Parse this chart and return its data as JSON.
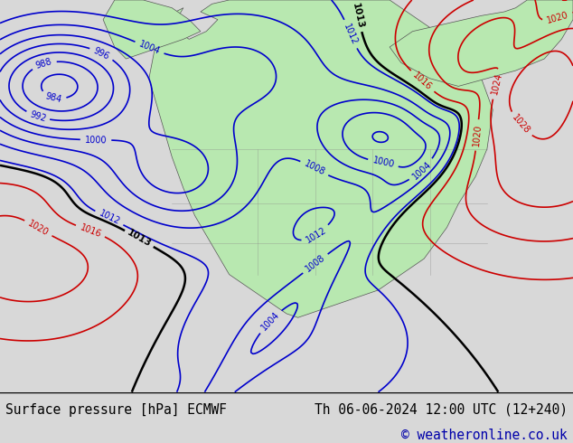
{
  "title_left": "Surface pressure [hPa] ECMWF",
  "title_right": "Th 06-06-2024 12:00 UTC (12+240)",
  "copyright": "© weatheronline.co.uk",
  "bg_color": "#d8d8d8",
  "land_color": "#b8e8b0",
  "ocean_color": "#d8d8d8",
  "contour_blue_color": "#0000cc",
  "contour_red_color": "#cc0000",
  "contour_black_color": "#000000",
  "footer_bg": "#ffffff",
  "font_family": "monospace",
  "title_fontsize": 10.5,
  "copyright_fontsize": 10.5,
  "copyright_color": "#0000aa"
}
